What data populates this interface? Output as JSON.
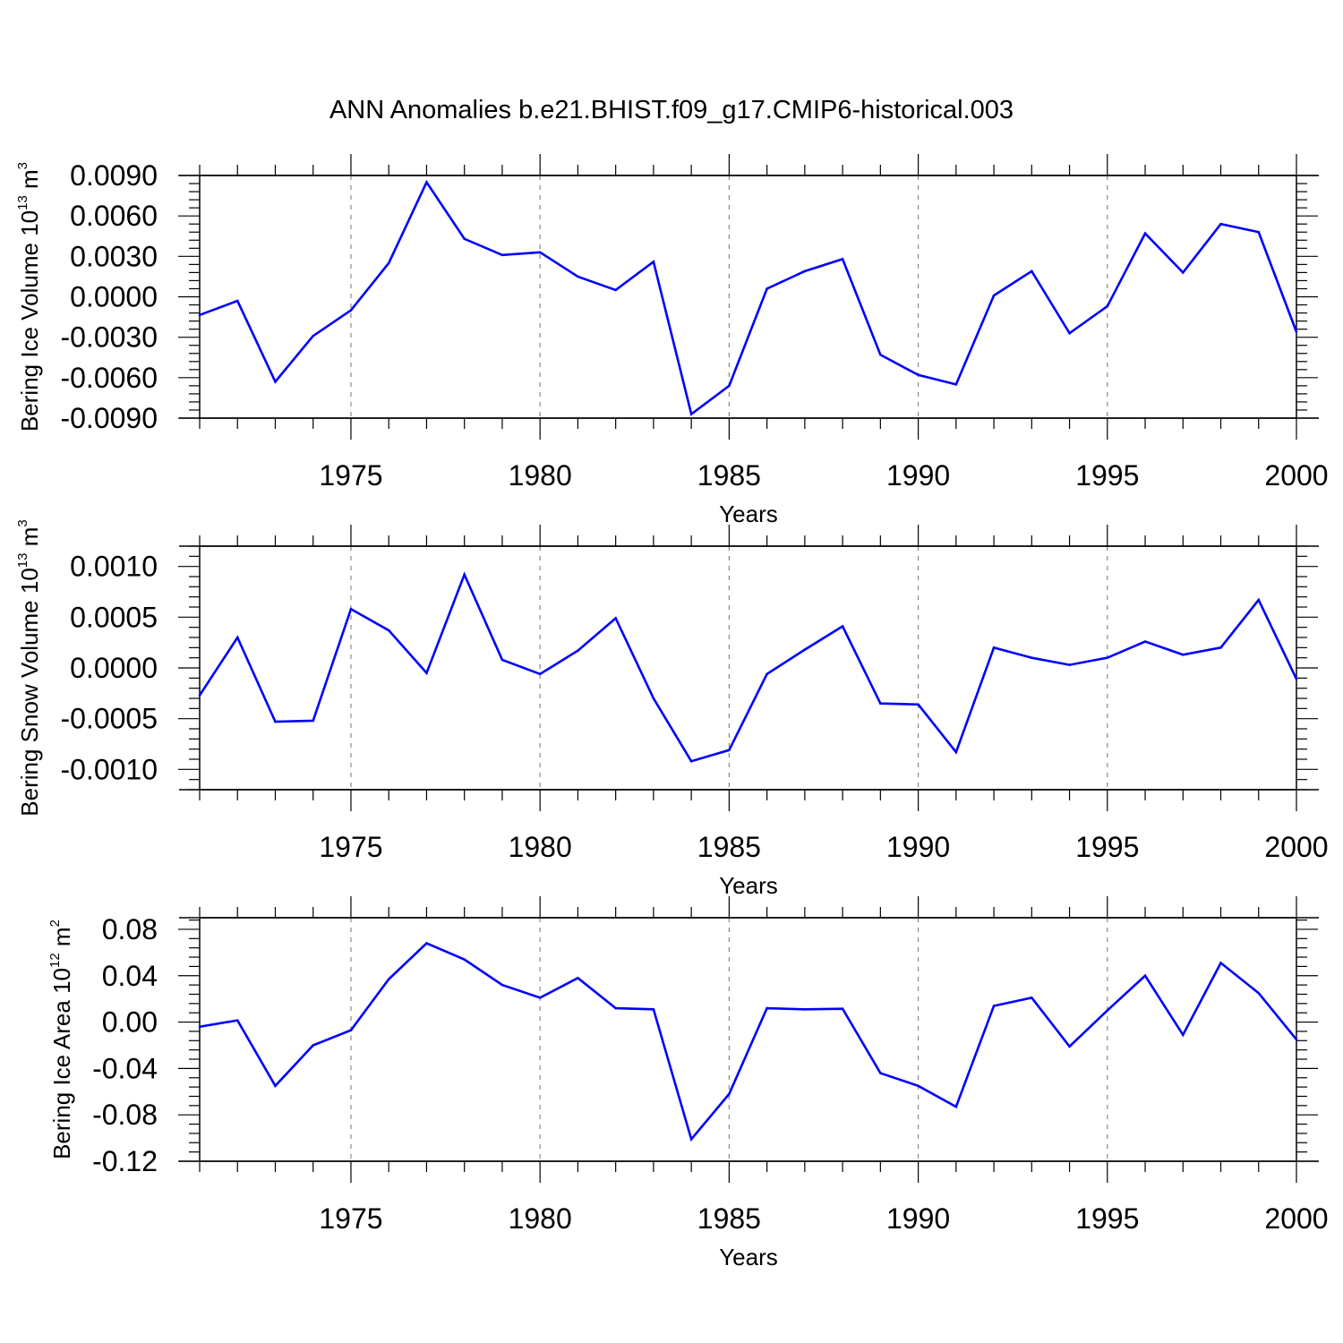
{
  "title": "ANN Anomalies b.e21.BHIST.f09_g17.CMIP6-historical.003",
  "colors": {
    "series": "#0000ff",
    "axis": "#000000",
    "grid": "#888888"
  },
  "chart_data": [
    {
      "type": "line",
      "ylabel_main": "Bering Ice Volume 10",
      "ylabel_exp": "13",
      "ylabel_unit": " m",
      "ylabel_unit_exp": "3",
      "xlabel": "Years",
      "xlim": [
        1971,
        2000
      ],
      "ylim": [
        -0.009,
        0.009
      ],
      "xticks": [
        1975,
        1980,
        1985,
        1990,
        1995,
        2000
      ],
      "yticks": [
        0.009,
        0.006,
        0.003,
        0.0,
        -0.003,
        -0.006,
        -0.009
      ],
      "ytick_labels": [
        "0.0090",
        "0.0060",
        "0.0030",
        "0.0000",
        "-0.0030",
        "-0.0060",
        "-0.0090"
      ],
      "grid": "vertical dashed at major x ticks",
      "x": [
        1971,
        1972,
        1973,
        1974,
        1975,
        1976,
        1977,
        1978,
        1979,
        1980,
        1981,
        1982,
        1983,
        1984,
        1985,
        1986,
        1987,
        1988,
        1989,
        1990,
        1991,
        1992,
        1993,
        1994,
        1995,
        1996,
        1997,
        1998,
        1999,
        2000
      ],
      "values": [
        -0.00135,
        -0.0003,
        -0.0063,
        -0.0029,
        -0.001,
        0.0025,
        0.0085,
        0.0043,
        0.0031,
        0.0033,
        0.0015,
        0.0005,
        0.0026,
        -0.0087,
        -0.0066,
        0.0006,
        0.0019,
        0.0028,
        -0.0043,
        -0.0058,
        -0.0065,
        0.0001,
        0.0019,
        -0.0027,
        -0.0007,
        0.0047,
        0.0018,
        0.0054,
        0.0048,
        -0.0026
      ]
    },
    {
      "type": "line",
      "ylabel_main": "Bering Snow Volume 10",
      "ylabel_exp": "13",
      "ylabel_unit": " m",
      "ylabel_unit_exp": "3",
      "xlabel": "Years",
      "xlim": [
        1971,
        2000
      ],
      "ylim": [
        -0.0012,
        0.0012
      ],
      "xticks": [
        1975,
        1980,
        1985,
        1990,
        1995,
        2000
      ],
      "yticks": [
        0.001,
        0.0005,
        0.0,
        -0.0005,
        -0.001
      ],
      "ytick_labels": [
        "0.0010",
        "0.0005",
        "0.0000",
        "-0.0005",
        "-0.0010"
      ],
      "grid": "vertical dashed at major x ticks",
      "x": [
        1971,
        1972,
        1973,
        1974,
        1975,
        1976,
        1977,
        1978,
        1979,
        1980,
        1981,
        1982,
        1983,
        1984,
        1985,
        1986,
        1987,
        1988,
        1989,
        1990,
        1991,
        1992,
        1993,
        1994,
        1995,
        1996,
        1997,
        1998,
        1999,
        2000
      ],
      "values": [
        -0.00027,
        0.0003,
        -0.00053,
        -0.00052,
        0.00058,
        0.00037,
        -5e-05,
        0.00092,
        8e-05,
        -6e-05,
        0.00017,
        0.00049,
        -0.0003,
        -0.00092,
        -0.00081,
        -6e-05,
        0.00018,
        0.00041,
        -0.00035,
        -0.00036,
        -0.00083,
        0.0002,
        0.0001,
        3e-05,
        0.0001,
        0.00026,
        0.00013,
        0.0002,
        0.00067,
        -0.00011
      ]
    },
    {
      "type": "line",
      "ylabel_main": "Bering Ice Area 10",
      "ylabel_exp": "12",
      "ylabel_unit": " m",
      "ylabel_unit_exp": "2",
      "xlabel": "Years",
      "xlim": [
        1971,
        2000
      ],
      "ylim": [
        -0.12,
        0.09
      ],
      "xticks": [
        1975,
        1980,
        1985,
        1990,
        1995,
        2000
      ],
      "yticks": [
        0.08,
        0.04,
        0.0,
        -0.04,
        -0.08,
        -0.12
      ],
      "ytick_labels": [
        "0.08",
        "0.04",
        "0.00",
        "-0.04",
        "-0.08",
        "-0.12"
      ],
      "grid": "vertical dashed at major x ticks",
      "x": [
        1971,
        1972,
        1973,
        1974,
        1975,
        1976,
        1977,
        1978,
        1979,
        1980,
        1981,
        1982,
        1983,
        1984,
        1985,
        1986,
        1987,
        1988,
        1989,
        1990,
        1991,
        1992,
        1993,
        1994,
        1995,
        1996,
        1997,
        1998,
        1999,
        2000
      ],
      "values": [
        -0.004,
        0.0015,
        -0.055,
        -0.02,
        -0.007,
        0.037,
        0.068,
        0.054,
        0.032,
        0.021,
        0.038,
        0.012,
        0.011,
        -0.101,
        -0.062,
        0.012,
        0.011,
        0.0115,
        -0.044,
        -0.055,
        -0.073,
        0.014,
        0.021,
        -0.021,
        0.01,
        0.04,
        -0.011,
        0.051,
        0.025,
        -0.015
      ]
    }
  ]
}
